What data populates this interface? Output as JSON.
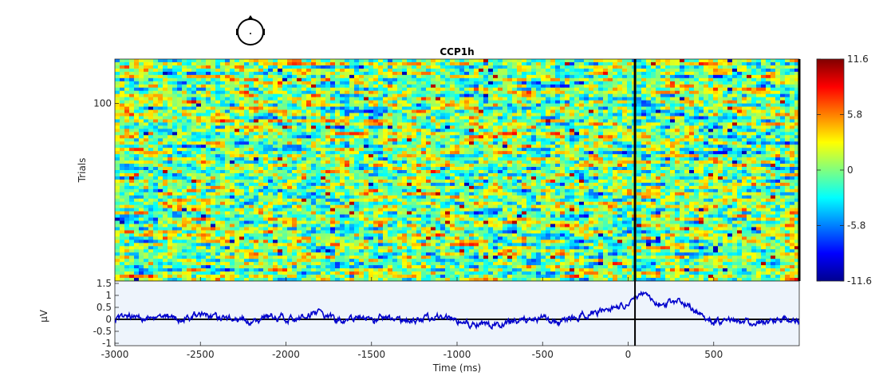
{
  "chart_data": [
    {
      "type": "heatmap",
      "title": "CCP1h",
      "ylabel": "Trials",
      "xlim": [
        -3000,
        1000
      ],
      "ylim": [
        0,
        125
      ],
      "y_ticks": [
        100
      ],
      "event_markers_ms": [
        40,
        1000
      ],
      "colorbar": {
        "range": [
          -11.6,
          11.6
        ],
        "ticks": [
          11.6,
          5.8,
          0,
          -5.8,
          -11.6
        ],
        "tick_labels": [
          "11.6",
          "5.8",
          "0",
          "-5.8",
          "-11.6"
        ],
        "colormap": "jet"
      }
    },
    {
      "type": "line",
      "ylabel": "μV",
      "xlabel": "Time (ms)",
      "xlim": [
        -3000,
        1000
      ],
      "ylim": [
        -1.1,
        1.6
      ],
      "x_ticks": [
        -3000,
        -2500,
        -2000,
        -1500,
        -1000,
        -500,
        0,
        500
      ],
      "x_tick_labels": [
        "-3000",
        "-2500",
        "-2000",
        "-1500",
        "-1000",
        "-500",
        "0",
        "500"
      ],
      "y_ticks": [
        1.5,
        1,
        0.5,
        0,
        -0.5,
        -1
      ],
      "y_tick_labels": [
        "1.5",
        "1",
        "0.5",
        "0",
        "-0.5",
        "-1"
      ],
      "series": [
        {
          "x": [
            -3000,
            -2900,
            -2800,
            -2700,
            -2600,
            -2500,
            -2400,
            -2300,
            -2200,
            -2100,
            -2000,
            -1900,
            -1800,
            -1700,
            -1600,
            -1500,
            -1400,
            -1300,
            -1200,
            -1100,
            -1000,
            -900,
            -800,
            -700,
            -600,
            -500,
            -400,
            -300,
            -200,
            -100,
            0,
            40,
            100,
            150,
            200,
            250,
            300,
            350,
            400,
            450,
            500,
            600,
            700,
            800,
            900,
            1000
          ],
          "values": [
            0.0,
            0.15,
            0.05,
            0.1,
            0.0,
            0.2,
            0.1,
            0.05,
            -0.1,
            0.15,
            0.0,
            0.05,
            0.3,
            -0.05,
            0.1,
            0.0,
            0.1,
            -0.1,
            0.0,
            0.1,
            -0.05,
            -0.2,
            -0.25,
            -0.1,
            0.0,
            0.05,
            -0.15,
            0.1,
            0.3,
            0.4,
            0.6,
            1.0,
            1.1,
            0.8,
            0.5,
            0.7,
            0.75,
            0.55,
            0.3,
            0.0,
            -0.1,
            0.0,
            -0.15,
            -0.1,
            0.0,
            -0.1
          ]
        }
      ]
    }
  ],
  "colors": {
    "erp_line": "#0000cc",
    "erp_background": "#eef4fc",
    "markers": "#000000"
  }
}
